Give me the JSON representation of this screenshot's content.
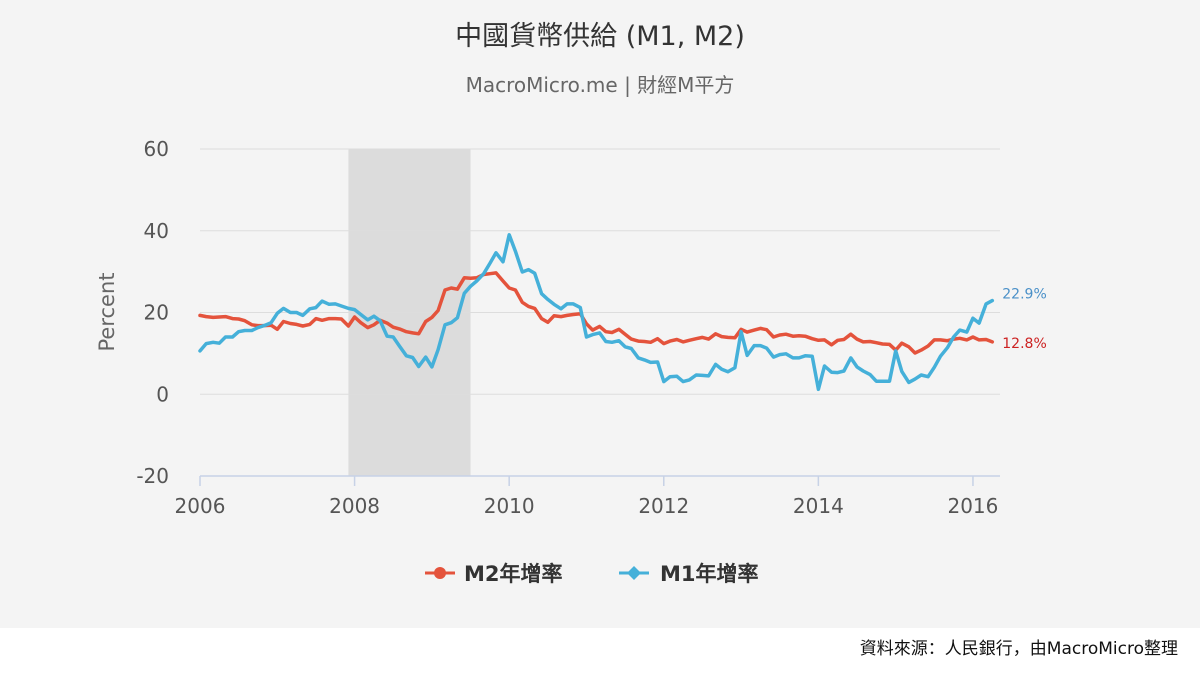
{
  "colors": {
    "m2": "#e4533c",
    "m1": "#45b0d9",
    "m1_label": "#4a90c8",
    "m2_label": "#cc2222",
    "recession_band": "#dcdcdc",
    "grid": "#dddddd",
    "axis": "#c7d2e6",
    "text": "#333333",
    "subtitle": "#666666"
  },
  "chart_data": {
    "type": "line",
    "title": "中國貨幣供給 (M1, M2)",
    "subtitle": "MacroMicro.me | 財經M平方",
    "ylabel": "Percent",
    "xlabel": "",
    "xlim": [
      2006,
      2016.35
    ],
    "ylim": [
      -20,
      60
    ],
    "yticks": [
      -20,
      0,
      20,
      40,
      60
    ],
    "xticks": [
      2006,
      2008,
      2010,
      2012,
      2014,
      2016
    ],
    "grid": true,
    "legend_position": "bottom",
    "shaded_periods": [
      {
        "start": 2007.92,
        "end": 2009.5
      }
    ],
    "series": [
      {
        "name": "M2年增率",
        "color": "#e4533c",
        "marker": "circle",
        "last_label": "12.8%",
        "points": [
          [
            2006.0,
            19.3
          ],
          [
            2006.08,
            19.0
          ],
          [
            2006.17,
            18.8
          ],
          [
            2006.25,
            18.9
          ],
          [
            2006.33,
            19.0
          ],
          [
            2006.42,
            18.5
          ],
          [
            2006.5,
            18.4
          ],
          [
            2006.58,
            18.0
          ],
          [
            2006.67,
            17.0
          ],
          [
            2006.75,
            16.8
          ],
          [
            2006.83,
            16.8
          ],
          [
            2006.92,
            16.9
          ],
          [
            2007.0,
            15.9
          ],
          [
            2007.08,
            17.8
          ],
          [
            2007.17,
            17.3
          ],
          [
            2007.25,
            17.1
          ],
          [
            2007.33,
            16.7
          ],
          [
            2007.42,
            17.1
          ],
          [
            2007.5,
            18.5
          ],
          [
            2007.58,
            18.1
          ],
          [
            2007.67,
            18.5
          ],
          [
            2007.75,
            18.5
          ],
          [
            2007.83,
            18.4
          ],
          [
            2007.92,
            16.7
          ],
          [
            2008.0,
            18.9
          ],
          [
            2008.08,
            17.5
          ],
          [
            2008.17,
            16.3
          ],
          [
            2008.25,
            17.0
          ],
          [
            2008.33,
            18.1
          ],
          [
            2008.42,
            17.4
          ],
          [
            2008.5,
            16.4
          ],
          [
            2008.58,
            16.0
          ],
          [
            2008.67,
            15.3
          ],
          [
            2008.75,
            15.0
          ],
          [
            2008.83,
            14.8
          ],
          [
            2008.92,
            17.8
          ],
          [
            2009.0,
            18.8
          ],
          [
            2009.08,
            20.5
          ],
          [
            2009.17,
            25.5
          ],
          [
            2009.25,
            26.0
          ],
          [
            2009.33,
            25.7
          ],
          [
            2009.42,
            28.5
          ],
          [
            2009.5,
            28.4
          ],
          [
            2009.58,
            28.5
          ],
          [
            2009.67,
            29.3
          ],
          [
            2009.75,
            29.5
          ],
          [
            2009.83,
            29.7
          ],
          [
            2009.92,
            27.7
          ],
          [
            2010.0,
            26.0
          ],
          [
            2010.08,
            25.5
          ],
          [
            2010.17,
            22.5
          ],
          [
            2010.25,
            21.5
          ],
          [
            2010.33,
            21.0
          ],
          [
            2010.42,
            18.5
          ],
          [
            2010.5,
            17.6
          ],
          [
            2010.58,
            19.2
          ],
          [
            2010.67,
            19.0
          ],
          [
            2010.75,
            19.3
          ],
          [
            2010.83,
            19.5
          ],
          [
            2010.92,
            19.7
          ],
          [
            2011.0,
            17.2
          ],
          [
            2011.08,
            15.7
          ],
          [
            2011.17,
            16.6
          ],
          [
            2011.25,
            15.3
          ],
          [
            2011.33,
            15.1
          ],
          [
            2011.42,
            15.9
          ],
          [
            2011.5,
            14.7
          ],
          [
            2011.58,
            13.5
          ],
          [
            2011.67,
            13.0
          ],
          [
            2011.75,
            12.9
          ],
          [
            2011.83,
            12.7
          ],
          [
            2011.92,
            13.6
          ],
          [
            2012.0,
            12.4
          ],
          [
            2012.08,
            13.0
          ],
          [
            2012.17,
            13.4
          ],
          [
            2012.25,
            12.8
          ],
          [
            2012.33,
            13.2
          ],
          [
            2012.42,
            13.6
          ],
          [
            2012.5,
            13.9
          ],
          [
            2012.58,
            13.5
          ],
          [
            2012.67,
            14.8
          ],
          [
            2012.75,
            14.1
          ],
          [
            2012.83,
            13.9
          ],
          [
            2012.92,
            13.8
          ],
          [
            2013.0,
            15.9
          ],
          [
            2013.08,
            15.2
          ],
          [
            2013.17,
            15.7
          ],
          [
            2013.25,
            16.1
          ],
          [
            2013.33,
            15.8
          ],
          [
            2013.42,
            14.0
          ],
          [
            2013.5,
            14.5
          ],
          [
            2013.58,
            14.7
          ],
          [
            2013.67,
            14.2
          ],
          [
            2013.75,
            14.3
          ],
          [
            2013.83,
            14.2
          ],
          [
            2013.92,
            13.6
          ],
          [
            2014.0,
            13.2
          ],
          [
            2014.08,
            13.3
          ],
          [
            2014.17,
            12.1
          ],
          [
            2014.25,
            13.2
          ],
          [
            2014.33,
            13.4
          ],
          [
            2014.42,
            14.7
          ],
          [
            2014.5,
            13.5
          ],
          [
            2014.58,
            12.8
          ],
          [
            2014.67,
            12.9
          ],
          [
            2014.75,
            12.6
          ],
          [
            2014.83,
            12.3
          ],
          [
            2014.92,
            12.2
          ],
          [
            2015.0,
            10.8
          ],
          [
            2015.08,
            12.5
          ],
          [
            2015.17,
            11.6
          ],
          [
            2015.25,
            10.1
          ],
          [
            2015.33,
            10.8
          ],
          [
            2015.42,
            11.8
          ],
          [
            2015.5,
            13.3
          ],
          [
            2015.58,
            13.3
          ],
          [
            2015.67,
            13.1
          ],
          [
            2015.75,
            13.5
          ],
          [
            2015.83,
            13.7
          ],
          [
            2015.92,
            13.3
          ],
          [
            2016.0,
            14.0
          ],
          [
            2016.08,
            13.3
          ],
          [
            2016.17,
            13.4
          ],
          [
            2016.25,
            12.8
          ]
        ]
      },
      {
        "name": "M1年增率",
        "color": "#45b0d9",
        "marker": "diamond",
        "last_label": "22.9%",
        "points": [
          [
            2006.0,
            10.6
          ],
          [
            2006.08,
            12.4
          ],
          [
            2006.17,
            12.7
          ],
          [
            2006.25,
            12.5
          ],
          [
            2006.33,
            14.0
          ],
          [
            2006.42,
            14.0
          ],
          [
            2006.5,
            15.3
          ],
          [
            2006.58,
            15.6
          ],
          [
            2006.67,
            15.6
          ],
          [
            2006.75,
            16.3
          ],
          [
            2006.83,
            16.8
          ],
          [
            2006.92,
            17.5
          ],
          [
            2007.0,
            19.8
          ],
          [
            2007.08,
            21.0
          ],
          [
            2007.17,
            20.0
          ],
          [
            2007.25,
            20.0
          ],
          [
            2007.33,
            19.3
          ],
          [
            2007.42,
            20.9
          ],
          [
            2007.5,
            21.2
          ],
          [
            2007.58,
            22.8
          ],
          [
            2007.67,
            22.0
          ],
          [
            2007.75,
            22.1
          ],
          [
            2007.83,
            21.6
          ],
          [
            2007.92,
            21.0
          ],
          [
            2008.0,
            20.7
          ],
          [
            2008.08,
            19.5
          ],
          [
            2008.17,
            18.2
          ],
          [
            2008.25,
            19.1
          ],
          [
            2008.33,
            18.0
          ],
          [
            2008.42,
            14.2
          ],
          [
            2008.5,
            14.0
          ],
          [
            2008.58,
            11.8
          ],
          [
            2008.67,
            9.4
          ],
          [
            2008.75,
            9.0
          ],
          [
            2008.83,
            6.8
          ],
          [
            2008.92,
            9.1
          ],
          [
            2009.0,
            6.7
          ],
          [
            2009.08,
            10.9
          ],
          [
            2009.17,
            17.0
          ],
          [
            2009.25,
            17.5
          ],
          [
            2009.33,
            18.7
          ],
          [
            2009.42,
            24.7
          ],
          [
            2009.5,
            26.4
          ],
          [
            2009.58,
            27.7
          ],
          [
            2009.67,
            29.5
          ],
          [
            2009.75,
            32.0
          ],
          [
            2009.83,
            34.6
          ],
          [
            2009.92,
            32.4
          ],
          [
            2010.0,
            39.0
          ],
          [
            2010.08,
            35.0
          ],
          [
            2010.17,
            29.9
          ],
          [
            2010.25,
            30.5
          ],
          [
            2010.33,
            29.6
          ],
          [
            2010.42,
            24.6
          ],
          [
            2010.5,
            23.2
          ],
          [
            2010.58,
            22.0
          ],
          [
            2010.67,
            20.9
          ],
          [
            2010.75,
            22.1
          ],
          [
            2010.83,
            22.1
          ],
          [
            2010.92,
            21.2
          ],
          [
            2011.0,
            14.0
          ],
          [
            2011.08,
            14.6
          ],
          [
            2011.17,
            15.0
          ],
          [
            2011.25,
            12.9
          ],
          [
            2011.33,
            12.7
          ],
          [
            2011.42,
            13.1
          ],
          [
            2011.5,
            11.6
          ],
          [
            2011.58,
            11.2
          ],
          [
            2011.67,
            8.9
          ],
          [
            2011.75,
            8.4
          ],
          [
            2011.83,
            7.8
          ],
          [
            2011.92,
            7.9
          ],
          [
            2012.0,
            3.1
          ],
          [
            2012.08,
            4.3
          ],
          [
            2012.17,
            4.4
          ],
          [
            2012.25,
            3.1
          ],
          [
            2012.33,
            3.5
          ],
          [
            2012.42,
            4.7
          ],
          [
            2012.5,
            4.6
          ],
          [
            2012.58,
            4.5
          ],
          [
            2012.67,
            7.3
          ],
          [
            2012.75,
            6.1
          ],
          [
            2012.83,
            5.5
          ],
          [
            2012.92,
            6.5
          ],
          [
            2013.0,
            15.3
          ],
          [
            2013.08,
            9.5
          ],
          [
            2013.17,
            11.9
          ],
          [
            2013.25,
            11.9
          ],
          [
            2013.33,
            11.3
          ],
          [
            2013.42,
            9.1
          ],
          [
            2013.5,
            9.7
          ],
          [
            2013.58,
            9.9
          ],
          [
            2013.67,
            8.9
          ],
          [
            2013.75,
            8.9
          ],
          [
            2013.83,
            9.4
          ],
          [
            2013.92,
            9.3
          ],
          [
            2014.0,
            1.2
          ],
          [
            2014.08,
            6.9
          ],
          [
            2014.17,
            5.4
          ],
          [
            2014.25,
            5.3
          ],
          [
            2014.33,
            5.7
          ],
          [
            2014.42,
            8.9
          ],
          [
            2014.5,
            6.7
          ],
          [
            2014.58,
            5.7
          ],
          [
            2014.67,
            4.8
          ],
          [
            2014.75,
            3.2
          ],
          [
            2014.83,
            3.2
          ],
          [
            2014.92,
            3.2
          ],
          [
            2015.0,
            10.6
          ],
          [
            2015.08,
            5.6
          ],
          [
            2015.17,
            2.9
          ],
          [
            2015.25,
            3.7
          ],
          [
            2015.33,
            4.7
          ],
          [
            2015.42,
            4.3
          ],
          [
            2015.5,
            6.6
          ],
          [
            2015.58,
            9.3
          ],
          [
            2015.67,
            11.4
          ],
          [
            2015.75,
            14.0
          ],
          [
            2015.83,
            15.7
          ],
          [
            2015.92,
            15.2
          ],
          [
            2016.0,
            18.6
          ],
          [
            2016.08,
            17.4
          ],
          [
            2016.17,
            22.1
          ],
          [
            2016.25,
            22.9
          ]
        ]
      }
    ]
  },
  "footer": {
    "source": "資料來源：人民銀行，由MacroMicro整理"
  }
}
